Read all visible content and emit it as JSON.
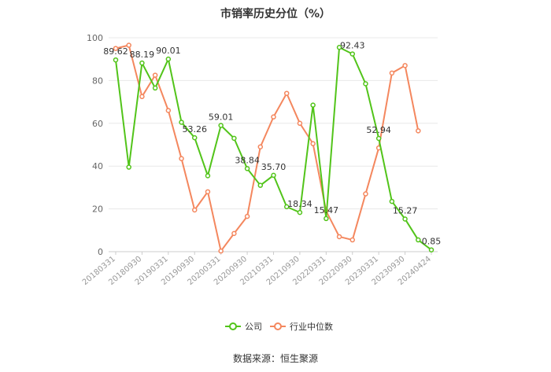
{
  "chart_data": {
    "type": "line",
    "title": "市销率历史分位（%）",
    "xlabel": "",
    "ylabel": "",
    "ylim": [
      0,
      100
    ],
    "yticks": [
      0,
      20,
      40,
      60,
      80,
      100
    ],
    "x": [
      "20180331",
      "20180630",
      "20180930",
      "20181231",
      "20190331",
      "20190630",
      "20190930",
      "20191231",
      "20200331",
      "20200630",
      "20200930",
      "20201231",
      "20210331",
      "20210630",
      "20210930",
      "20211231",
      "20220331",
      "20220630",
      "20220930",
      "20221231",
      "20230331",
      "20230630",
      "20230930",
      "20231231",
      "20240424"
    ],
    "xticks": [
      "20180331",
      "20180930",
      "20190331",
      "20190930",
      "20200331",
      "20200930",
      "20210331",
      "20210930",
      "20220331",
      "20220930",
      "20230331",
      "20230930",
      "20240424"
    ],
    "series": [
      {
        "name": "公司",
        "color": "#52c41a",
        "values": [
          89.62,
          39.5,
          88.19,
          76.5,
          90.01,
          60.5,
          53.26,
          35.5,
          59.01,
          53.0,
          38.84,
          31.0,
          35.7,
          21.0,
          18.34,
          68.5,
          15.47,
          95.5,
          92.43,
          78.5,
          52.94,
          23.5,
          15.27,
          5.5,
          0.85
        ],
        "labels": {
          "0": "89.62",
          "2": "88.19",
          "4": "90.01",
          "6": "53.26",
          "8": "59.01",
          "10": "38.84",
          "12": "35.70",
          "14": "18.34",
          "16": "15.47",
          "18": "92.43",
          "20": "52.94",
          "22": "15.27",
          "24": "0.85"
        }
      },
      {
        "name": "行业中位数",
        "color": "#f4875e",
        "values": [
          95.0,
          96.5,
          72.5,
          82.5,
          66.0,
          43.5,
          19.5,
          28.0,
          0.3,
          8.5,
          16.5,
          49.0,
          63.0,
          74.0,
          60.0,
          50.5,
          19.0,
          7.0,
          5.5,
          27.0,
          48.5,
          83.5,
          87.0,
          56.5,
          null
        ]
      }
    ],
    "legend": "bottom-center",
    "grid": true,
    "source": "数据来源：恒生聚源"
  }
}
